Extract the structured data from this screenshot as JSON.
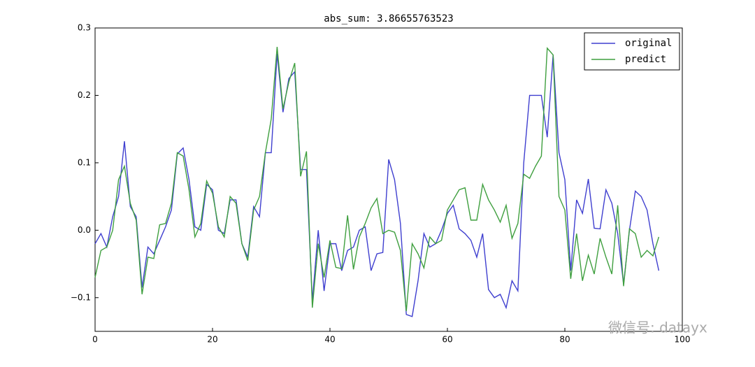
{
  "chart_data": {
    "type": "line",
    "title": "abs_sum: 3.86655763523",
    "x": [
      0,
      1,
      2,
      3,
      4,
      5,
      6,
      7,
      8,
      9,
      10,
      11,
      12,
      13,
      14,
      15,
      16,
      17,
      18,
      19,
      20,
      21,
      22,
      23,
      24,
      25,
      26,
      27,
      28,
      29,
      30,
      31,
      32,
      33,
      34,
      35,
      36,
      37,
      38,
      39,
      40,
      41,
      42,
      43,
      44,
      45,
      46,
      47,
      48,
      49,
      50,
      51,
      52,
      53,
      54,
      55,
      56,
      57,
      58,
      59,
      60,
      61,
      62,
      63,
      64,
      65,
      66,
      67,
      68,
      69,
      70,
      71,
      72,
      73,
      74,
      75,
      76,
      77,
      78,
      79,
      80,
      81,
      82,
      83,
      84,
      85,
      86,
      87,
      88,
      89,
      90,
      91,
      92,
      93,
      94,
      95,
      96
    ],
    "series": [
      {
        "name": "original",
        "color": "#3f3fcf",
        "values": [
          -0.02,
          -0.005,
          -0.025,
          0.02,
          0.05,
          0.132,
          0.035,
          0.02,
          -0.085,
          -0.025,
          -0.035,
          -0.015,
          0.005,
          0.03,
          0.113,
          0.122,
          0.075,
          0.005,
          0.0,
          0.068,
          0.06,
          0.0,
          -0.005,
          0.045,
          0.045,
          -0.02,
          -0.04,
          0.035,
          0.02,
          0.115,
          0.115,
          0.262,
          0.175,
          0.225,
          0.235,
          0.09,
          0.09,
          -0.105,
          0.0,
          -0.09,
          -0.02,
          -0.02,
          -0.06,
          -0.03,
          -0.025,
          0.0,
          0.005,
          -0.06,
          -0.035,
          -0.033,
          0.105,
          0.075,
          0.01,
          -0.125,
          -0.128,
          -0.075,
          -0.005,
          -0.025,
          -0.02,
          0.0,
          0.025,
          0.037,
          0.002,
          -0.005,
          -0.015,
          -0.04,
          -0.005,
          -0.088,
          -0.1,
          -0.095,
          -0.115,
          -0.075,
          -0.09,
          0.1,
          0.2,
          0.2,
          0.2,
          0.138,
          0.26,
          0.115,
          0.075,
          -0.06,
          0.045,
          0.025,
          0.076,
          0.003,
          0.002,
          0.06,
          0.04,
          -0.005,
          -0.08,
          0.0,
          0.058,
          0.05,
          0.03,
          -0.02,
          -0.06
        ]
      },
      {
        "name": "predict",
        "color": "#3f9f3f",
        "values": [
          -0.07,
          -0.03,
          -0.025,
          0.0,
          0.075,
          0.095,
          0.04,
          0.015,
          -0.095,
          -0.04,
          -0.042,
          0.008,
          0.01,
          0.04,
          0.115,
          0.11,
          0.06,
          -0.01,
          0.01,
          0.073,
          0.055,
          0.005,
          -0.01,
          0.05,
          0.04,
          -0.02,
          -0.045,
          0.03,
          0.05,
          0.115,
          0.165,
          0.272,
          0.18,
          0.22,
          0.248,
          0.08,
          0.117,
          -0.115,
          -0.02,
          -0.07,
          -0.015,
          -0.055,
          -0.057,
          0.022,
          -0.058,
          -0.01,
          0.01,
          0.033,
          0.047,
          -0.005,
          0.0,
          -0.003,
          -0.03,
          -0.12,
          -0.02,
          -0.035,
          -0.056,
          -0.01,
          -0.02,
          -0.015,
          0.03,
          0.045,
          0.06,
          0.063,
          0.015,
          0.015,
          0.068,
          0.045,
          0.03,
          0.012,
          0.037,
          -0.012,
          0.01,
          0.083,
          0.077,
          0.095,
          0.11,
          0.27,
          0.26,
          0.05,
          0.03,
          -0.072,
          -0.005,
          -0.075,
          -0.037,
          -0.065,
          -0.012,
          -0.04,
          -0.065,
          0.037,
          -0.083,
          0.002,
          -0.005,
          -0.04,
          -0.03,
          -0.038,
          -0.01
        ]
      }
    ],
    "xlim": [
      0,
      100
    ],
    "xticks": [
      0,
      20,
      40,
      60,
      80,
      100
    ],
    "ylim": [
      -0.15,
      0.3
    ],
    "yticks": [
      {
        "value": -0.1,
        "label": "−0.1"
      },
      {
        "value": 0,
        "label": "0.0"
      },
      0.1,
      0.2,
      0.3
    ],
    "legend": "upper right",
    "watermark": "微信号: datayx"
  }
}
